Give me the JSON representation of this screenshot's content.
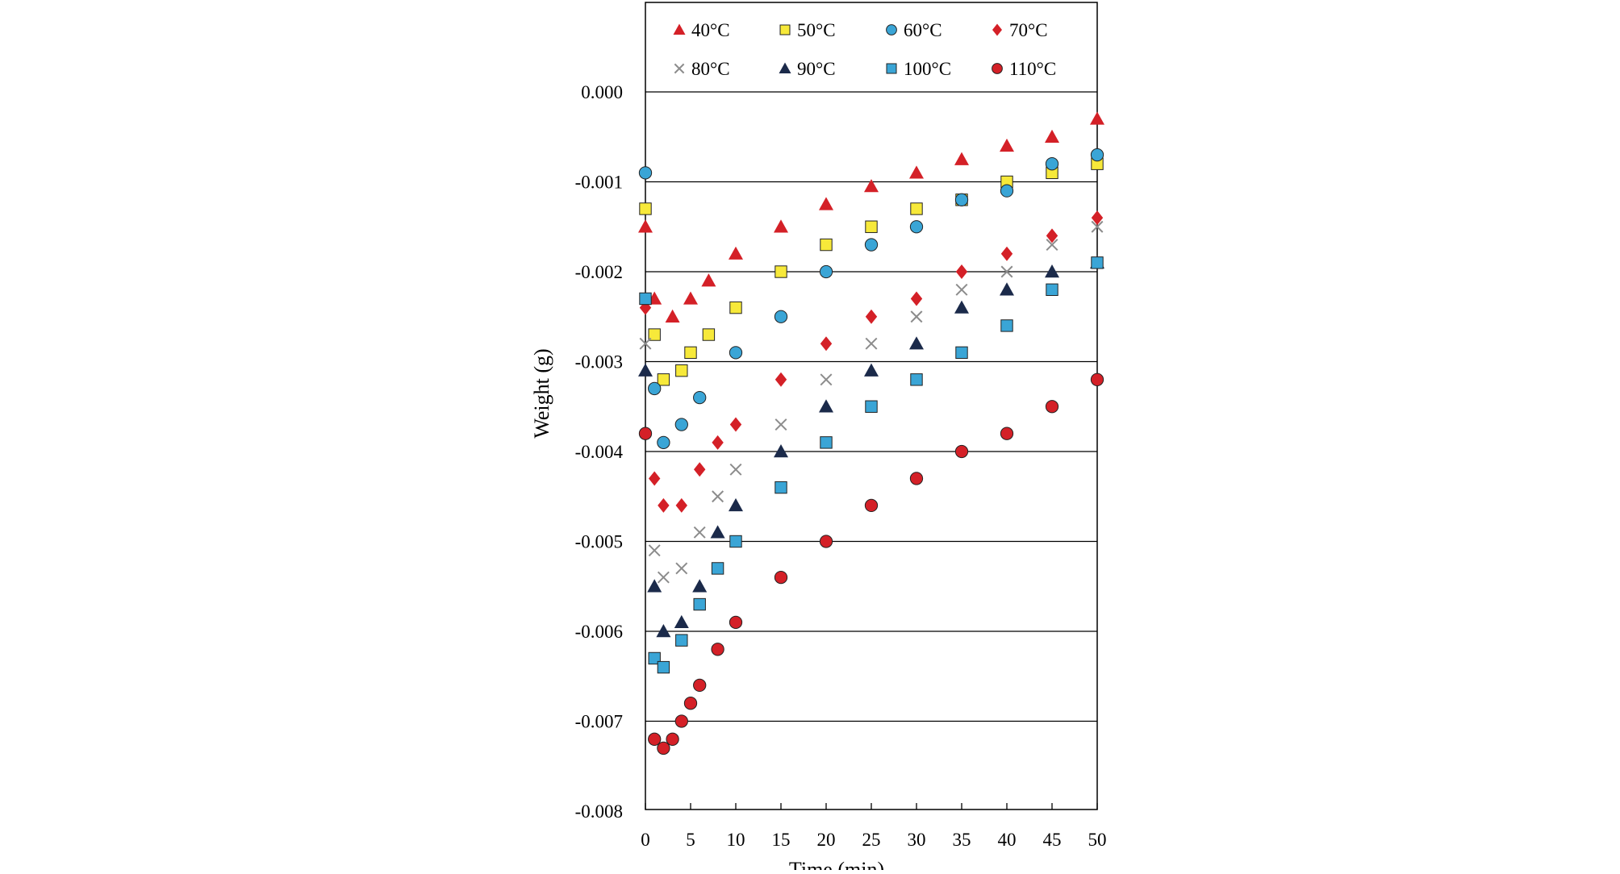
{
  "chart_data": {
    "type": "scatter",
    "title": "",
    "xlabel": "Time (min)",
    "ylabel": "Weight (g)",
    "xlim": [
      0,
      50
    ],
    "ylim": [
      -0.008,
      0.001
    ],
    "x_ticks": [
      0,
      5,
      10,
      15,
      20,
      25,
      30,
      35,
      40,
      45,
      50
    ],
    "x_tick_labels": [
      "0",
      "5",
      "10",
      "15",
      "20",
      "25",
      "30",
      "35",
      "40",
      "45",
      "50"
    ],
    "y_ticks": [
      0.0,
      -0.001,
      -0.002,
      -0.003,
      -0.004,
      -0.005,
      -0.006,
      -0.007,
      -0.008
    ],
    "y_tick_labels": [
      "0.000",
      "-0.001",
      "-0.002",
      "-0.003",
      "-0.004",
      "-0.005",
      "-0.006",
      "-0.007",
      "-0.008"
    ],
    "grid": "horizontal",
    "legend_position": "top (inside plot frame, 2 rows x 4 columns)",
    "series": [
      {
        "name": "40°C",
        "marker": "triangle",
        "color": "#d42027",
        "x": [
          0,
          1,
          3,
          5,
          7,
          10,
          15,
          20,
          25,
          30,
          35,
          40,
          45,
          50
        ],
        "y": [
          -0.0015,
          -0.0023,
          -0.0025,
          -0.0023,
          -0.0021,
          -0.0018,
          -0.0015,
          -0.00125,
          -0.00105,
          -0.0009,
          -0.00075,
          -0.0006,
          -0.0005,
          -0.0003
        ]
      },
      {
        "name": "50°C",
        "marker": "square",
        "color": "#f7e93a",
        "x": [
          0,
          1,
          2,
          4,
          5,
          7,
          10,
          15,
          20,
          25,
          30,
          35,
          40,
          45,
          50
        ],
        "y": [
          -0.0013,
          -0.0027,
          -0.0032,
          -0.0031,
          -0.0029,
          -0.0027,
          -0.0024,
          -0.002,
          -0.0017,
          -0.0015,
          -0.0013,
          -0.0012,
          -0.001,
          -0.0009,
          -0.0008
        ]
      },
      {
        "name": "60°C",
        "marker": "circle",
        "color": "#3aa5d6",
        "x": [
          0,
          1,
          2,
          4,
          6,
          10,
          15,
          20,
          25,
          30,
          35,
          40,
          45,
          50
        ],
        "y": [
          -0.0009,
          -0.0033,
          -0.0039,
          -0.0037,
          -0.0034,
          -0.0029,
          -0.0025,
          -0.002,
          -0.0017,
          -0.0015,
          -0.0012,
          -0.0011,
          -0.0008,
          -0.0007
        ]
      },
      {
        "name": "70°C",
        "marker": "diamond",
        "color": "#d42027",
        "x": [
          0,
          1,
          2,
          4,
          6,
          8,
          10,
          15,
          20,
          25,
          30,
          35,
          40,
          45,
          50
        ],
        "y": [
          -0.0024,
          -0.0043,
          -0.0046,
          -0.0046,
          -0.0042,
          -0.0039,
          -0.0037,
          -0.0032,
          -0.0028,
          -0.0025,
          -0.0023,
          -0.002,
          -0.0018,
          -0.0016,
          -0.0014
        ]
      },
      {
        "name": "80°C",
        "marker": "x",
        "color": "#8c8c8c",
        "x": [
          0,
          1,
          2,
          4,
          6,
          8,
          10,
          15,
          20,
          25,
          30,
          35,
          40,
          45,
          50
        ],
        "y": [
          -0.0028,
          -0.0051,
          -0.0054,
          -0.0053,
          -0.0049,
          -0.0045,
          -0.0042,
          -0.0037,
          -0.0032,
          -0.0028,
          -0.0025,
          -0.0022,
          -0.002,
          -0.0017,
          -0.0015
        ]
      },
      {
        "name": "90°C",
        "marker": "triangle",
        "color": "#1b2a4a",
        "x": [
          0,
          1,
          2,
          4,
          6,
          8,
          10,
          15,
          20,
          25,
          30,
          35,
          40,
          45,
          50
        ],
        "y": [
          -0.0031,
          -0.0055,
          -0.006,
          -0.0059,
          -0.0055,
          -0.0049,
          -0.0046,
          -0.004,
          -0.0035,
          -0.0031,
          -0.0028,
          -0.0024,
          -0.0022,
          -0.002,
          -0.0019
        ]
      },
      {
        "name": "100°C",
        "marker": "square",
        "color": "#3aa5d6",
        "x": [
          0,
          1,
          2,
          4,
          6,
          8,
          10,
          15,
          20,
          25,
          30,
          35,
          40,
          45,
          50
        ],
        "y": [
          -0.0023,
          -0.0063,
          -0.0064,
          -0.0061,
          -0.0057,
          -0.0053,
          -0.005,
          -0.0044,
          -0.0039,
          -0.0035,
          -0.0032,
          -0.0029,
          -0.0026,
          -0.0022,
          -0.0019
        ]
      },
      {
        "name": "110°C",
        "marker": "circle",
        "color": "#d42027",
        "x": [
          0,
          1,
          2,
          3,
          4,
          5,
          6,
          8,
          10,
          15,
          20,
          25,
          30,
          35,
          40,
          45,
          50
        ],
        "y": [
          -0.0038,
          -0.0072,
          -0.0073,
          -0.0072,
          -0.007,
          -0.0068,
          -0.0066,
          -0.0062,
          -0.0059,
          -0.0054,
          -0.005,
          -0.0046,
          -0.0043,
          -0.004,
          -0.0038,
          -0.0035,
          -0.0032
        ]
      }
    ]
  }
}
